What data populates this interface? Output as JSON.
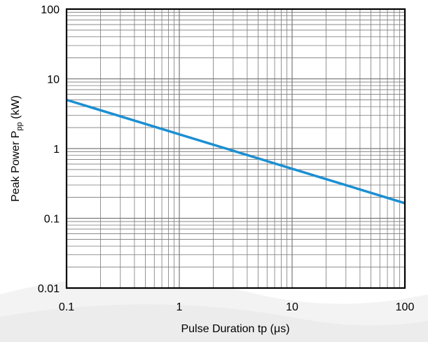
{
  "chart_data": {
    "type": "line",
    "title": "",
    "xlabel": "Pulse Duration tp (μs)",
    "ylabel_main": "Peak Power P",
    "ylabel_sub": "pp",
    "ylabel_unit": " (kW)",
    "x_scale": "log",
    "y_scale": "log",
    "xlim": [
      0.1,
      100
    ],
    "ylim": [
      0.01,
      100
    ],
    "x_ticks": [
      0.1,
      1,
      10,
      100
    ],
    "x_tick_labels": [
      "0.1",
      "1",
      "10",
      "100"
    ],
    "y_ticks": [
      0.01,
      0.1,
      1,
      10,
      100
    ],
    "y_tick_labels": [
      "0.01",
      "0.1",
      "1",
      "10",
      "100"
    ],
    "grid": true,
    "legend": "none",
    "series": [
      {
        "color": "#1b8fd2",
        "x": [
          0.1,
          100
        ],
        "y": [
          5.0,
          0.165
        ]
      }
    ]
  }
}
